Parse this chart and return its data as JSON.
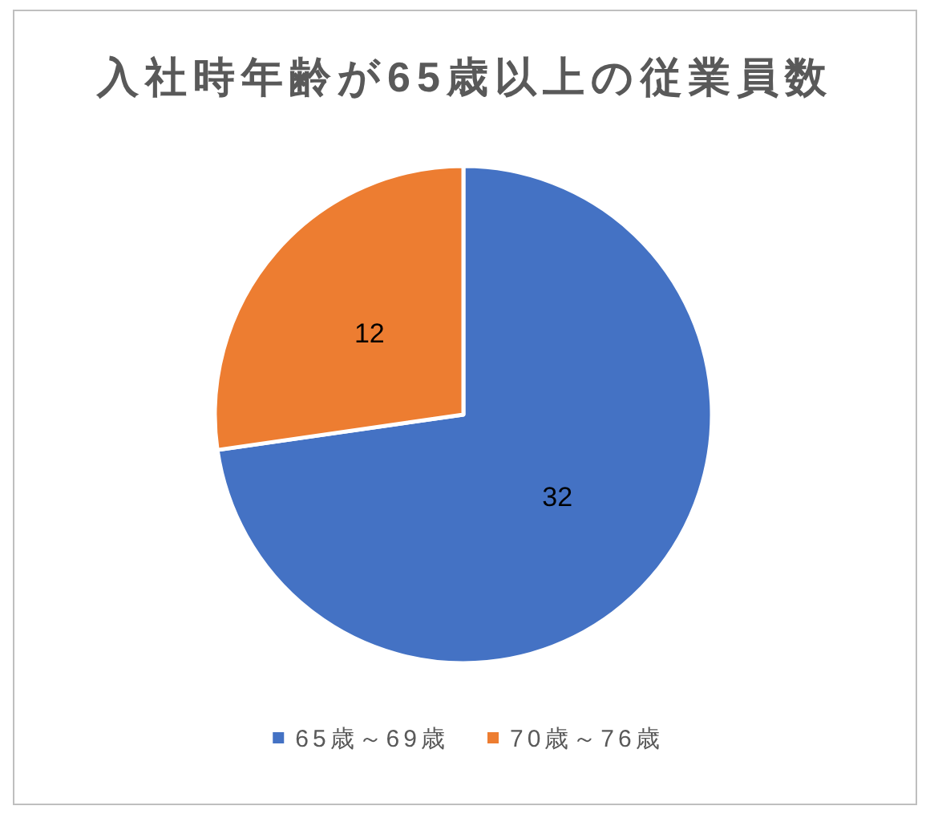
{
  "chart_data": {
    "type": "pie",
    "title": "入社時年齢が65歳以上の従業員数",
    "categories": [
      "65歳～69歳",
      "70歳～76歳"
    ],
    "values": [
      32,
      12
    ],
    "colors": [
      "#4472c4",
      "#ed7d31"
    ],
    "data_labels": true,
    "legend": "bottom"
  }
}
